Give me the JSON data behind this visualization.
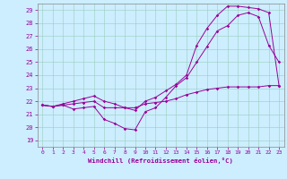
{
  "xlabel": "Windchill (Refroidissement éolien,°C)",
  "background_color": "#cceeff",
  "line_color": "#990099",
  "grid_color": "#99ccbb",
  "xlim": [
    -0.5,
    23.5
  ],
  "ylim": [
    18.5,
    29.5
  ],
  "yticks": [
    19,
    20,
    21,
    22,
    23,
    24,
    25,
    26,
    27,
    28,
    29
  ],
  "xticks": [
    0,
    1,
    2,
    3,
    4,
    5,
    6,
    7,
    8,
    9,
    10,
    11,
    12,
    13,
    14,
    15,
    16,
    17,
    18,
    19,
    20,
    21,
    22,
    23
  ],
  "line1_x": [
    0,
    1,
    2,
    3,
    4,
    5,
    6,
    7,
    8,
    9,
    10,
    11,
    12,
    13,
    14,
    15,
    16,
    17,
    18,
    19,
    20,
    21,
    22,
    23
  ],
  "line1_y": [
    21.7,
    21.6,
    21.7,
    21.4,
    21.5,
    21.6,
    20.6,
    20.3,
    19.9,
    19.8,
    21.2,
    21.5,
    22.3,
    23.2,
    23.8,
    25.0,
    26.2,
    27.4,
    27.8,
    28.6,
    28.8,
    28.5,
    26.3,
    25.0
  ],
  "line2_x": [
    0,
    1,
    2,
    3,
    4,
    5,
    6,
    7,
    8,
    9,
    10,
    11,
    12,
    13,
    14,
    15,
    16,
    17,
    18,
    19,
    20,
    21,
    22,
    23
  ],
  "line2_y": [
    21.7,
    21.6,
    21.8,
    22.0,
    22.2,
    22.4,
    22.0,
    21.8,
    21.5,
    21.3,
    22.0,
    22.3,
    22.8,
    23.3,
    24.0,
    26.3,
    27.6,
    28.6,
    29.3,
    29.3,
    29.2,
    29.1,
    28.8,
    23.2
  ],
  "line3_x": [
    0,
    1,
    2,
    3,
    4,
    5,
    6,
    7,
    8,
    9,
    10,
    11,
    12,
    13,
    14,
    15,
    16,
    17,
    18,
    19,
    20,
    21,
    22,
    23
  ],
  "line3_y": [
    21.7,
    21.6,
    21.7,
    21.8,
    21.9,
    22.0,
    21.5,
    21.5,
    21.5,
    21.5,
    21.8,
    21.9,
    22.0,
    22.2,
    22.5,
    22.7,
    22.9,
    23.0,
    23.1,
    23.1,
    23.1,
    23.1,
    23.2,
    23.2
  ]
}
